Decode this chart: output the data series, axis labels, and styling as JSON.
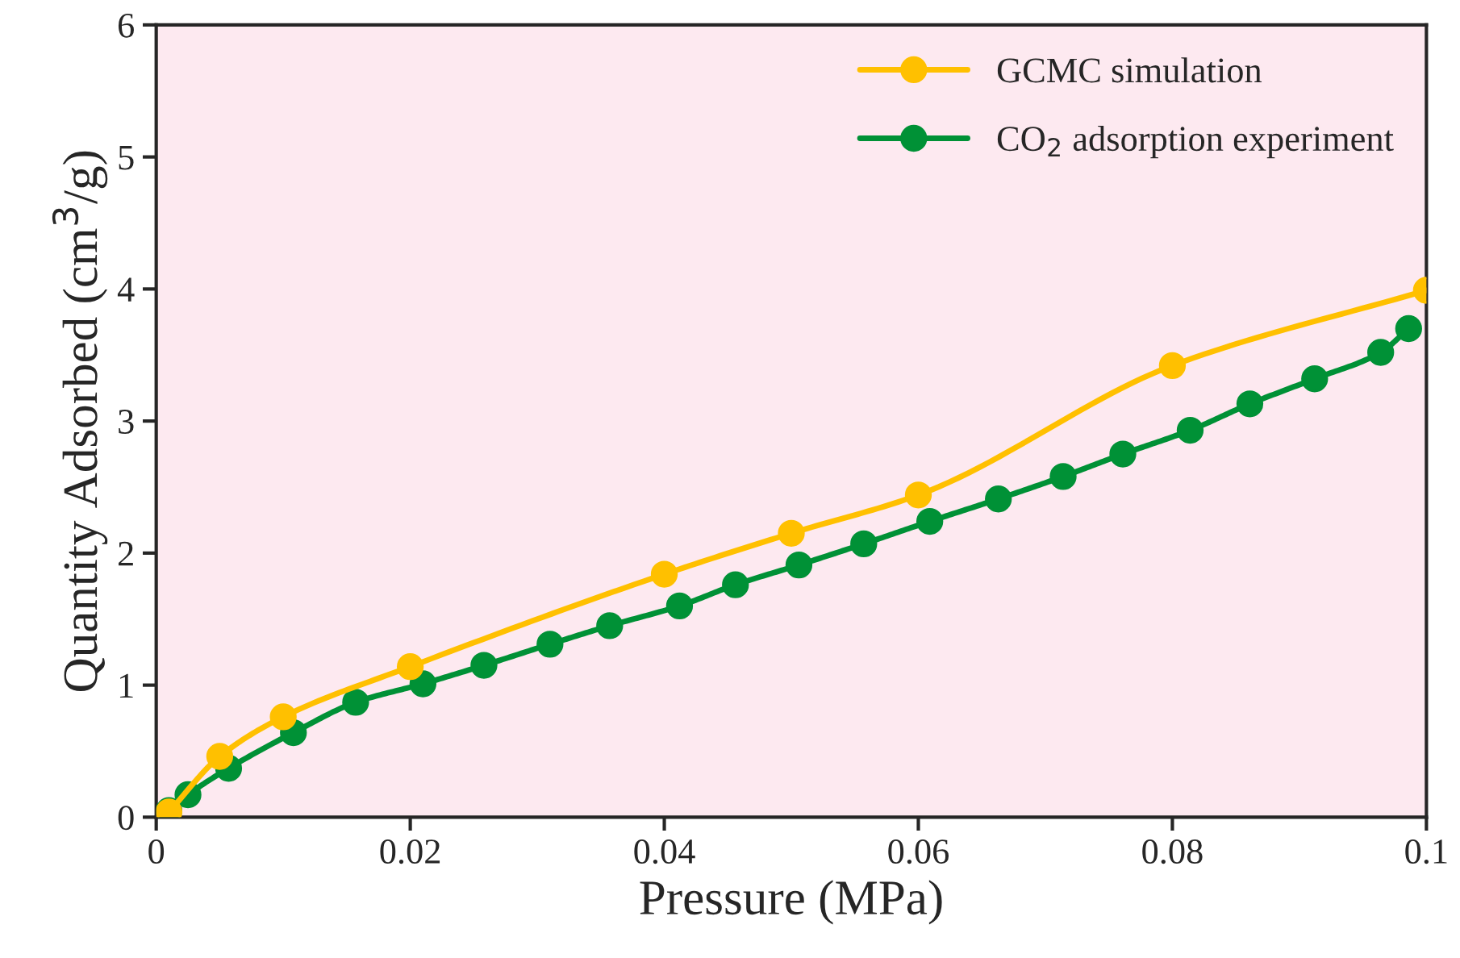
{
  "chart_data": {
    "type": "line",
    "xlabel": "Pressure (MPa)",
    "ylabel": "Quantity Adsorbed (cm$^{3}$/g)",
    "xlim": [
      0,
      0.1
    ],
    "ylim": [
      0,
      6
    ],
    "xticks": [
      0,
      0.02,
      0.04,
      0.06,
      0.08,
      0.1
    ],
    "yticks": [
      0,
      1,
      2,
      3,
      4,
      5,
      6
    ],
    "grid": false,
    "legend": "top right",
    "marker": "circle",
    "line_style": "solid",
    "series": [
      {
        "name": "GCMC simulation",
        "color": "#ffc000",
        "x": [
          0.001,
          0.005,
          0.01,
          0.02,
          0.04,
          0.05,
          0.06,
          0.08,
          0.1
        ],
        "values": [
          0.04,
          0.46,
          0.76,
          1.14,
          1.84,
          2.15,
          2.44,
          3.42,
          3.99
        ]
      },
      {
        "name": "CO$_{2}$ adsorption experiment",
        "color": "#009136",
        "x": [
          0.001,
          0.0025,
          0.0057,
          0.0108,
          0.0157,
          0.021,
          0.0258,
          0.031,
          0.0357,
          0.0412,
          0.0456,
          0.0506,
          0.0557,
          0.0609,
          0.0663,
          0.0714,
          0.0761,
          0.0814,
          0.0861,
          0.0912,
          0.0964,
          0.0986
        ],
        "values": [
          0.05,
          0.17,
          0.37,
          0.64,
          0.87,
          1.01,
          1.15,
          1.31,
          1.45,
          1.6,
          1.76,
          1.91,
          2.07,
          2.24,
          2.41,
          2.58,
          2.75,
          2.93,
          3.13,
          3.32,
          3.52,
          3.7
        ]
      }
    ]
  }
}
